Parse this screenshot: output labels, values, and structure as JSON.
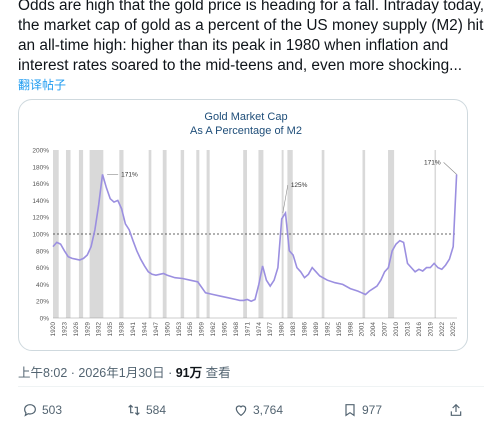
{
  "post": {
    "text": "Odds are high that the gold price is heading for a fall. Intraday today, the market cap of gold as a percent of the US money supply (M2) hit an all-time high: higher than its peak in 1980 when inflation and interest rates soared to the mid-teens and, even more shocking...",
    "translate_label": "翻译帖子"
  },
  "meta": {
    "timestamp": "上午8:02 · 2026年1月30日 · ",
    "views_count": "91万",
    "views_label": " 查看"
  },
  "actions": {
    "reply_count": "503",
    "repost_count": "584",
    "like_count": "3,764",
    "bookmark_count": "977"
  },
  "icons": [
    "reply-icon",
    "repost-icon",
    "like-icon",
    "bookmark-icon",
    "share-icon"
  ],
  "colors": {
    "line": "#9b8fe0",
    "shade": "#d9d9d9",
    "text": "#0f1419",
    "muted": "#536471",
    "link": "#1d9bf0"
  },
  "chart_data": {
    "type": "line",
    "title_line1": "Gold Market Cap",
    "title_line2": "As A Percentage of M2",
    "ylim": [
      0,
      200
    ],
    "yticks": [
      "0%",
      "20%",
      "40%",
      "60%",
      "80%",
      "100%",
      "120%",
      "140%",
      "160%",
      "180%",
      "200%"
    ],
    "xticks": [
      "1920",
      "1923",
      "1926",
      "1929",
      "1932",
      "1935",
      "1938",
      "1941",
      "1944",
      "1947",
      "1950",
      "1953",
      "1956",
      "1959",
      "1962",
      "1965",
      "1968",
      "1971",
      "1974",
      "1977",
      "1980",
      "1983",
      "1986",
      "1989",
      "1992",
      "1995",
      "1998",
      "2001",
      "2004",
      "2007",
      "2010",
      "2013",
      "2016",
      "2019",
      "2022",
      "2025"
    ],
    "xlim": [
      1920,
      2026
    ],
    "reference_line": 100,
    "recessions": [
      [
        1920,
        1921.5
      ],
      [
        1923.4,
        1924.6
      ],
      [
        1926.8,
        1927.9
      ],
      [
        1929.6,
        1933.2
      ],
      [
        1937.4,
        1938.5
      ],
      [
        1945.1,
        1945.8
      ],
      [
        1948.8,
        1949.8
      ],
      [
        1953.5,
        1954.4
      ],
      [
        1957.6,
        1958.4
      ],
      [
        1960.3,
        1961.1
      ],
      [
        1969.9,
        1970.9
      ],
      [
        1973.9,
        1975.2
      ],
      [
        1980,
        1980.5
      ],
      [
        1981.5,
        1982.9
      ],
      [
        1990.5,
        1991.2
      ],
      [
        2001.2,
        2001.9
      ],
      [
        2007.9,
        2009.5
      ],
      [
        2020.1,
        2020.4
      ]
    ],
    "annotations": [
      {
        "text": "171%",
        "x": 1934.2,
        "y": 171
      },
      {
        "text": "125%",
        "x": 1980.3,
        "y": 125
      },
      {
        "text": "171%",
        "x": 2025.9,
        "y": 171
      }
    ],
    "series": [
      {
        "x": [
          1920,
          1921,
          1922,
          1923,
          1924,
          1925,
          1926,
          1927,
          1928,
          1929,
          1930,
          1931,
          1932,
          1933,
          1934,
          1935,
          1936,
          1937,
          1938,
          1939,
          1940,
          1941,
          1942,
          1943,
          1944,
          1945,
          1946,
          1947,
          1948,
          1949,
          1950,
          1952,
          1954,
          1956,
          1958,
          1960,
          1962,
          1964,
          1966,
          1968,
          1969,
          1970,
          1971,
          1972,
          1973,
          1974,
          1975,
          1976,
          1977,
          1978,
          1979,
          1980,
          1981,
          1982,
          1983,
          1984,
          1985,
          1986,
          1987,
          1988,
          1989,
          1990,
          1992,
          1994,
          1996,
          1998,
          2000,
          2001,
          2002,
          2003,
          2004,
          2005,
          2006,
          2007,
          2008,
          2009,
          2010,
          2011,
          2012,
          2013,
          2014,
          2015,
          2016,
          2017,
          2018,
          2019,
          2020,
          2021,
          2022,
          2023,
          2024,
          2025,
          2025.9
        ],
        "values": [
          85,
          90,
          88,
          80,
          73,
          71,
          70,
          69,
          71,
          75,
          85,
          105,
          135,
          171,
          155,
          142,
          138,
          140,
          130,
          112,
          105,
          92,
          80,
          70,
          62,
          55,
          52,
          51,
          52,
          53,
          51,
          48,
          47,
          45,
          43,
          30,
          28,
          26,
          24,
          22,
          21,
          21,
          22,
          20,
          22,
          40,
          62,
          45,
          38,
          45,
          60,
          118,
          125,
          80,
          75,
          60,
          55,
          48,
          52,
          60,
          55,
          50,
          45,
          42,
          40,
          35,
          32,
          30,
          28,
          32,
          35,
          38,
          45,
          55,
          60,
          80,
          88,
          92,
          90,
          65,
          60,
          55,
          58,
          56,
          60,
          60,
          65,
          60,
          58,
          63,
          70,
          85,
          171
        ]
      }
    ]
  }
}
